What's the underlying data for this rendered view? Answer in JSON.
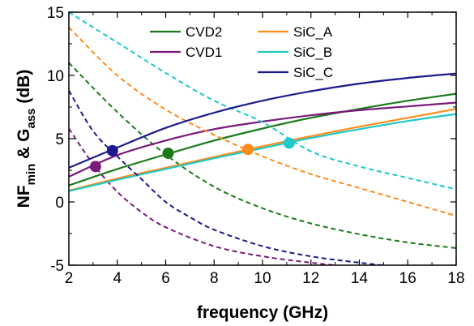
{
  "chart_data": {
    "type": "line",
    "xlabel": "frequency (GHz)",
    "ylabel": {
      "parts": [
        "NF",
        "min",
        " & G",
        "ass",
        " (dB)"
      ]
    },
    "xlim": [
      2,
      18
    ],
    "ylim": [
      -5,
      15
    ],
    "xticks": [
      "2",
      "4",
      "6",
      "8",
      "10",
      "12",
      "14",
      "16",
      "18"
    ],
    "yticks": [
      "-5",
      "0",
      "5",
      "10",
      "15"
    ],
    "grid": false,
    "legend_placement": "top-center",
    "series": [
      {
        "name": "CVD2",
        "color": "#1a7a1a",
        "solid": {
          "x": [
            2,
            4,
            6,
            8,
            10,
            12,
            14,
            16,
            18
          ],
          "y": [
            1.3,
            2.6,
            3.75,
            4.85,
            5.8,
            6.65,
            7.35,
            8.0,
            8.55
          ]
        },
        "dashed": {
          "x": [
            2,
            4,
            6,
            8,
            10,
            12,
            14,
            16,
            18
          ],
          "y": [
            11.0,
            7.1,
            3.75,
            1.2,
            -0.5,
            -1.7,
            -2.55,
            -3.2,
            -3.65
          ]
        },
        "marker": {
          "x": 6.1,
          "y": 3.85
        }
      },
      {
        "name": "CVD1",
        "color": "#7a1a7a",
        "solid": {
          "x": [
            2,
            4,
            6,
            8,
            10,
            12,
            14,
            16,
            18
          ],
          "y": [
            2.0,
            3.7,
            4.85,
            5.75,
            6.35,
            6.85,
            7.25,
            7.55,
            7.85
          ]
        },
        "dashed": {
          "x": [
            2,
            3,
            4,
            5,
            6,
            8,
            10,
            12,
            14,
            16,
            18
          ],
          "y": [
            5.8,
            3.0,
            0.8,
            -0.8,
            -2.0,
            -3.5,
            -4.3,
            -4.8,
            -5.2,
            -5.5,
            -5.8
          ]
        },
        "marker": {
          "x": 3.1,
          "y": 2.8
        }
      },
      {
        "name": "SiC_A",
        "color": "#ff8c1a",
        "solid": {
          "x": [
            2,
            4,
            6,
            8,
            10,
            12,
            14,
            16,
            18
          ],
          "y": [
            0.9,
            1.85,
            2.7,
            3.55,
            4.4,
            5.2,
            5.95,
            6.65,
            7.35
          ]
        },
        "dashed": {
          "x": [
            2,
            4,
            6,
            8,
            10,
            12,
            14,
            16,
            18
          ],
          "y": [
            13.8,
            10.0,
            7.3,
            5.3,
            3.6,
            2.2,
            1.1,
            0.0,
            -1.1
          ]
        },
        "marker": {
          "x": 9.4,
          "y": 4.15
        }
      },
      {
        "name": "SiC_B",
        "color": "#20c8c8",
        "solid": {
          "x": [
            2,
            4,
            6,
            8,
            10,
            12,
            14,
            16,
            18
          ],
          "y": [
            0.85,
            1.75,
            2.6,
            3.45,
            4.25,
            5.05,
            5.75,
            6.4,
            6.95
          ]
        },
        "dashed": {
          "x": [
            2,
            4,
            6,
            8,
            10,
            12,
            14,
            16,
            18
          ],
          "y": [
            15.0,
            12.6,
            10.2,
            8.0,
            6.3,
            4.0,
            2.8,
            1.9,
            1.0
          ]
        },
        "marker": {
          "x": 11.1,
          "y": 4.65
        }
      },
      {
        "name": "SiC_C",
        "color": "#1a1a8c",
        "solid": {
          "x": [
            2,
            4,
            6,
            8,
            10,
            12,
            14,
            16,
            18
          ],
          "y": [
            2.7,
            4.3,
            5.85,
            7.05,
            8.0,
            8.75,
            9.35,
            9.8,
            10.15
          ]
        },
        "dashed": {
          "x": [
            2,
            3,
            4,
            5,
            6,
            7,
            8,
            10,
            12,
            14,
            16,
            18
          ],
          "y": [
            8.8,
            5.6,
            3.6,
            1.8,
            0.0,
            -1.2,
            -2.2,
            -3.5,
            -4.3,
            -4.8,
            -5.2,
            -5.5
          ]
        },
        "marker": {
          "x": 3.8,
          "y": 4.05
        }
      }
    ],
    "legend_order": [
      "CVD2",
      "SiC_A",
      "CVD1",
      "SiC_B",
      "SiC_C"
    ]
  }
}
